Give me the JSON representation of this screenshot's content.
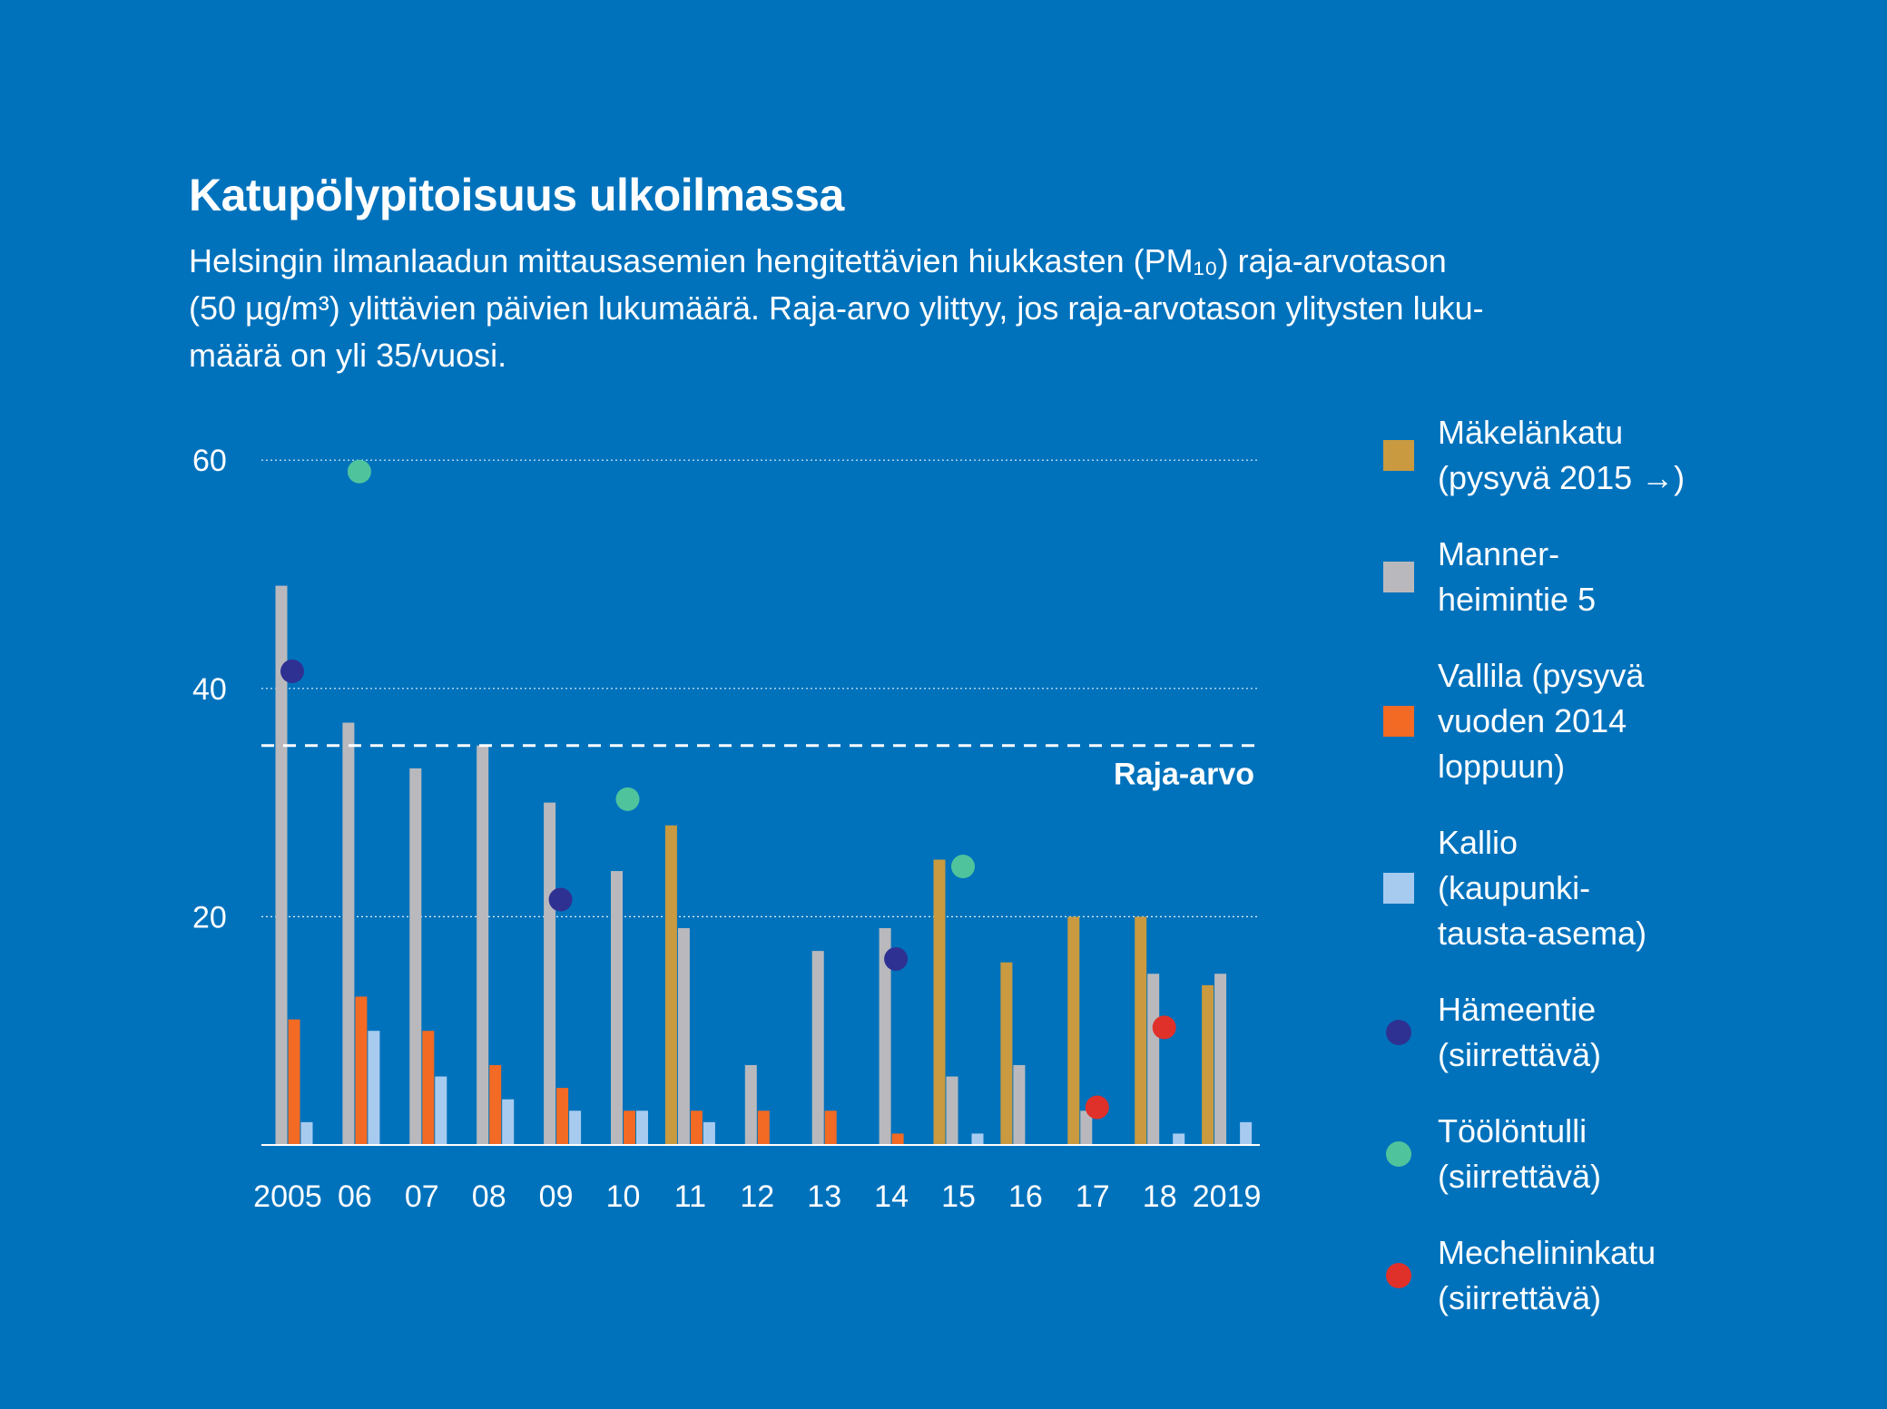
{
  "title": "Katupölypitoisuus ulkoilmassa",
  "subtitle_lines": [
    "Helsingin ilmanlaadun mittausasemien hengitettävien hiukkasten (PM₁₀) raja-arvotason",
    "(50 µg/m³) ylittävien päivien lukumäärä. Raja-arvo ylittyy, jos raja-arvotason ylitysten luku-",
    "määrä on yli 35/vuosi."
  ],
  "legend": [
    {
      "lines": [
        "Mäkelänkatu",
        "(pysyvä 2015 →)"
      ],
      "shape": "square",
      "color": "#c99a3f"
    },
    {
      "lines": [
        "Manner-",
        "heimintie 5"
      ],
      "shape": "square",
      "color": "#b9b9bd"
    },
    {
      "lines": [
        "Vallila (pysyvä",
        "vuoden 2014",
        "loppuun)"
      ],
      "shape": "square",
      "color": "#f26a23"
    },
    {
      "lines": [
        "Kallio",
        "(kaupunki-",
        "tausta-asema)"
      ],
      "shape": "square",
      "color": "#a7cbef"
    },
    {
      "lines": [
        "Hämeentie",
        "(siirrettävä)"
      ],
      "shape": "dot",
      "color": "#2e3192"
    },
    {
      "lines": [
        "Töölöntulli",
        "(siirrettävä)"
      ],
      "shape": "dot",
      "color": "#4fc49c"
    },
    {
      "lines": [
        "Mechelininkatu",
        "(siirrettävä)"
      ],
      "shape": "dot",
      "color": "#e0302a"
    }
  ],
  "chart_data": {
    "type": "bar",
    "categories": [
      "2005",
      "06",
      "07",
      "08",
      "09",
      "10",
      "11",
      "12",
      "13",
      "14",
      "15",
      "16",
      "17",
      "18",
      "2019"
    ],
    "ylim": [
      0,
      60
    ],
    "yticks": [
      20,
      40,
      60
    ],
    "grid": true,
    "bar_series": [
      {
        "key": "makelankatu",
        "color": "#c99a3f",
        "values": [
          null,
          null,
          null,
          null,
          null,
          null,
          28,
          null,
          null,
          null,
          25,
          16,
          20,
          20,
          14
        ]
      },
      {
        "key": "mannerheimintie",
        "color": "#b9b9bd",
        "values": [
          49,
          37,
          33,
          35,
          30,
          24,
          19,
          7,
          17,
          19,
          6,
          7,
          3,
          15,
          15
        ]
      },
      {
        "key": "vallila",
        "color": "#f26a23",
        "values": [
          11,
          13,
          10,
          7,
          5,
          3,
          3,
          3,
          3,
          1,
          null,
          null,
          null,
          null,
          null
        ]
      },
      {
        "key": "kallio",
        "color": "#a7cbef",
        "values": [
          2,
          10,
          6,
          4,
          3,
          3,
          2,
          null,
          null,
          null,
          1,
          null,
          null,
          1,
          2
        ]
      }
    ],
    "point_series": [
      {
        "key": "hameentie",
        "color": "#2e3192",
        "points": [
          {
            "category": "2005",
            "value": 41.5
          },
          {
            "category": "09",
            "value": 21.5
          },
          {
            "category": "14",
            "value": 16.3
          }
        ]
      },
      {
        "key": "toolontulli",
        "color": "#4fc49c",
        "points": [
          {
            "category": "06",
            "value": 59
          },
          {
            "category": "10",
            "value": 30.3
          },
          {
            "category": "15",
            "value": 24.4
          }
        ]
      },
      {
        "key": "mechelininkatu",
        "color": "#e0302a",
        "points": [
          {
            "category": "17",
            "value": 3.3
          },
          {
            "category": "18",
            "value": 10.3
          }
        ]
      }
    ],
    "reference_line": {
      "value": 35,
      "label": "Raja-arvo"
    }
  }
}
